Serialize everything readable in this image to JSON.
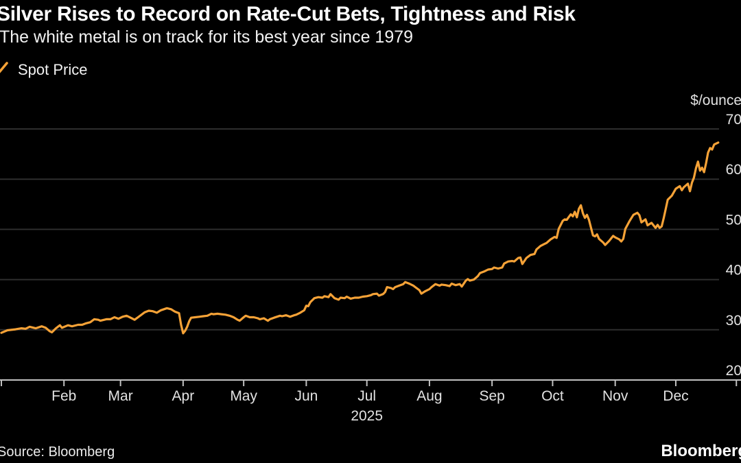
{
  "header": {
    "title": "Silver Rises to Record on Rate-Cut Bets, Tightness and Risk",
    "subtitle": "The white metal is on track for its best year since 1979"
  },
  "legend": {
    "label": "Spot Price"
  },
  "footer": {
    "source": "Source: Bloomberg",
    "brand": "Bloomberg"
  },
  "colors": {
    "background": "#000000",
    "line": "#F5A237",
    "grid": "#2e2e2e",
    "axis": "#c2c2c2",
    "label": "#e2e2e2"
  },
  "chart_data": {
    "type": "line",
    "title": "Silver spot price, 2025",
    "unit_label": "$/ounce",
    "year_label": "2025",
    "year": 2025,
    "ylim": [
      20,
      70
    ],
    "y_ticks": [
      70,
      60,
      50,
      40,
      30,
      20
    ],
    "x_tick_labels": [
      "Feb",
      "Mar",
      "Apr",
      "May",
      "Jun",
      "Jul",
      "Aug",
      "Sep",
      "Oct",
      "Nov",
      "Dec"
    ],
    "grid": true,
    "legend_position": "top-left",
    "series": [
      {
        "name": "Spot Price",
        "color": "#F5A237",
        "points": [
          [
            "01-01",
            29.4
          ],
          [
            "01-04",
            29.9
          ],
          [
            "01-08",
            30.1
          ],
          [
            "01-11",
            30.3
          ],
          [
            "01-13",
            30.2
          ],
          [
            "01-15",
            30.6
          ],
          [
            "01-18",
            30.3
          ],
          [
            "01-21",
            30.7
          ],
          [
            "01-23",
            30.4
          ],
          [
            "01-25",
            29.7
          ],
          [
            "01-26",
            29.5
          ],
          [
            "01-28",
            30.3
          ],
          [
            "01-30",
            30.9
          ],
          [
            "01-31",
            30.4
          ],
          [
            "02-03",
            30.9
          ],
          [
            "02-05",
            30.7
          ],
          [
            "02-08",
            31.0
          ],
          [
            "02-10",
            31.0
          ],
          [
            "02-12",
            31.3
          ],
          [
            "02-14",
            31.5
          ],
          [
            "02-16",
            32.1
          ],
          [
            "02-18",
            32.0
          ],
          [
            "02-19",
            31.8
          ],
          [
            "02-22",
            32.1
          ],
          [
            "02-24",
            32.1
          ],
          [
            "02-26",
            32.5
          ],
          [
            "02-28",
            32.2
          ],
          [
            "03-02",
            32.6
          ],
          [
            "03-04",
            32.8
          ],
          [
            "03-06",
            32.4
          ],
          [
            "03-08",
            32.0
          ],
          [
            "03-11",
            32.9
          ],
          [
            "03-13",
            33.5
          ],
          [
            "03-15",
            33.8
          ],
          [
            "03-17",
            33.7
          ],
          [
            "03-19",
            33.4
          ],
          [
            "03-21",
            33.9
          ],
          [
            "03-24",
            34.3
          ],
          [
            "03-26",
            34.1
          ],
          [
            "03-28",
            33.6
          ],
          [
            "03-30",
            33.3
          ],
          [
            "03-31",
            31.0
          ],
          [
            "04-01",
            29.3
          ],
          [
            "04-02",
            29.8
          ],
          [
            "04-03",
            30.6
          ],
          [
            "04-04",
            31.7
          ],
          [
            "04-05",
            32.4
          ],
          [
            "04-07",
            32.5
          ],
          [
            "04-09",
            32.6
          ],
          [
            "04-11",
            32.7
          ],
          [
            "04-13",
            32.8
          ],
          [
            "04-15",
            33.2
          ],
          [
            "04-16",
            33.1
          ],
          [
            "04-18",
            33.2
          ],
          [
            "04-20",
            33.1
          ],
          [
            "04-22",
            33.0
          ],
          [
            "04-24",
            32.8
          ],
          [
            "04-26",
            32.5
          ],
          [
            "04-28",
            32.0
          ],
          [
            "04-29",
            31.8
          ],
          [
            "05-01",
            32.5
          ],
          [
            "05-02",
            32.8
          ],
          [
            "05-04",
            32.5
          ],
          [
            "05-06",
            32.5
          ],
          [
            "05-08",
            32.3
          ],
          [
            "05-09",
            32.1
          ],
          [
            "05-11",
            32.3
          ],
          [
            "05-13",
            31.8
          ],
          [
            "05-14",
            32.1
          ],
          [
            "05-16",
            32.4
          ],
          [
            "05-19",
            32.8
          ],
          [
            "05-20",
            32.7
          ],
          [
            "05-22",
            32.9
          ],
          [
            "05-24",
            32.6
          ],
          [
            "05-26",
            32.9
          ],
          [
            "05-27",
            33.0
          ],
          [
            "05-29",
            33.4
          ],
          [
            "05-31",
            33.9
          ],
          [
            "06-01",
            34.8
          ],
          [
            "06-02",
            34.7
          ],
          [
            "06-03",
            35.5
          ],
          [
            "06-05",
            36.3
          ],
          [
            "06-07",
            36.5
          ],
          [
            "06-09",
            36.4
          ],
          [
            "06-10",
            36.7
          ],
          [
            "06-12",
            36.5
          ],
          [
            "06-13",
            37.1
          ],
          [
            "06-15",
            36.3
          ],
          [
            "06-17",
            36.0
          ],
          [
            "06-18",
            36.4
          ],
          [
            "06-20",
            36.3
          ],
          [
            "06-21",
            36.6
          ],
          [
            "06-23",
            36.2
          ],
          [
            "06-25",
            36.4
          ],
          [
            "06-27",
            36.4
          ],
          [
            "06-29",
            36.6
          ],
          [
            "07-01",
            36.7
          ],
          [
            "07-03",
            36.9
          ],
          [
            "07-04",
            37.1
          ],
          [
            "07-06",
            37.2
          ],
          [
            "07-07",
            36.8
          ],
          [
            "07-09",
            37.1
          ],
          [
            "07-10",
            37.5
          ],
          [
            "07-11",
            38.5
          ],
          [
            "07-13",
            38.3
          ],
          [
            "07-14",
            38.1
          ],
          [
            "07-15",
            38.5
          ],
          [
            "07-17",
            38.8
          ],
          [
            "07-19",
            39.1
          ],
          [
            "07-20",
            39.5
          ],
          [
            "07-22",
            39.2
          ],
          [
            "07-24",
            38.8
          ],
          [
            "07-25",
            38.5
          ],
          [
            "07-27",
            37.9
          ],
          [
            "07-28",
            37.2
          ],
          [
            "07-30",
            37.7
          ],
          [
            "08-01",
            38.1
          ],
          [
            "08-02",
            38.5
          ],
          [
            "08-04",
            39.1
          ],
          [
            "08-06",
            38.8
          ],
          [
            "08-07",
            39.0
          ],
          [
            "08-09",
            38.9
          ],
          [
            "08-11",
            38.7
          ],
          [
            "08-12",
            39.2
          ],
          [
            "08-14",
            38.9
          ],
          [
            "08-16",
            39.1
          ],
          [
            "08-17",
            38.6
          ],
          [
            "08-19",
            39.8
          ],
          [
            "08-20",
            40.1
          ],
          [
            "08-21",
            39.8
          ],
          [
            "08-23",
            40.0
          ],
          [
            "08-25",
            40.7
          ],
          [
            "08-26",
            41.3
          ],
          [
            "08-28",
            41.6
          ],
          [
            "08-30",
            42.0
          ],
          [
            "09-01",
            42.1
          ],
          [
            "09-02",
            42.4
          ],
          [
            "09-04",
            42.2
          ],
          [
            "09-06",
            42.4
          ],
          [
            "09-07",
            43.2
          ],
          [
            "09-09",
            43.6
          ],
          [
            "09-11",
            43.7
          ],
          [
            "09-12",
            43.6
          ],
          [
            "09-14",
            44.3
          ],
          [
            "09-15",
            44.4
          ],
          [
            "09-16",
            43.1
          ],
          [
            "09-18",
            44.3
          ],
          [
            "09-20",
            44.9
          ],
          [
            "09-22",
            45.1
          ],
          [
            "09-23",
            46.0
          ],
          [
            "09-25",
            46.7
          ],
          [
            "09-27",
            47.1
          ],
          [
            "09-28",
            47.3
          ],
          [
            "09-30",
            48.0
          ],
          [
            "10-02",
            48.5
          ],
          [
            "10-03",
            48.3
          ],
          [
            "10-04",
            50.1
          ],
          [
            "10-06",
            51.7
          ],
          [
            "10-07",
            52.0
          ],
          [
            "10-08",
            51.9
          ],
          [
            "10-10",
            53.0
          ],
          [
            "10-11",
            52.6
          ],
          [
            "10-12",
            53.5
          ],
          [
            "10-13",
            52.4
          ],
          [
            "10-14",
            54.1
          ],
          [
            "10-15",
            54.8
          ],
          [
            "10-16",
            53.2
          ],
          [
            "10-17",
            52.3
          ],
          [
            "10-18",
            52.9
          ],
          [
            "10-19",
            51.9
          ],
          [
            "10-20",
            50.3
          ],
          [
            "10-21",
            48.8
          ],
          [
            "10-22",
            48.6
          ],
          [
            "10-23",
            49.0
          ],
          [
            "10-24",
            48.1
          ],
          [
            "10-26",
            47.4
          ],
          [
            "10-27",
            46.9
          ],
          [
            "10-29",
            47.7
          ],
          [
            "10-31",
            48.7
          ],
          [
            "11-01",
            48.4
          ],
          [
            "11-03",
            48.0
          ],
          [
            "11-04",
            47.6
          ],
          [
            "11-05",
            48.1
          ],
          [
            "11-06",
            50.1
          ],
          [
            "11-08",
            51.6
          ],
          [
            "11-10",
            52.9
          ],
          [
            "11-12",
            53.3
          ],
          [
            "11-13",
            52.8
          ],
          [
            "11-14",
            51.4
          ],
          [
            "11-16",
            52.0
          ],
          [
            "11-17",
            50.8
          ],
          [
            "11-19",
            51.3
          ],
          [
            "11-21",
            50.3
          ],
          [
            "11-22",
            50.9
          ],
          [
            "11-23",
            50.3
          ],
          [
            "11-24",
            50.6
          ],
          [
            "11-25",
            52.2
          ],
          [
            "11-27",
            55.9
          ],
          [
            "11-29",
            56.7
          ],
          [
            "12-01",
            58.1
          ],
          [
            "12-03",
            58.6
          ],
          [
            "12-04",
            57.8
          ],
          [
            "12-05",
            58.4
          ],
          [
            "12-07",
            59.1
          ],
          [
            "12-08",
            57.6
          ],
          [
            "12-09",
            59.3
          ],
          [
            "12-10",
            60.3
          ],
          [
            "12-11",
            62.2
          ],
          [
            "12-12",
            63.5
          ],
          [
            "12-13",
            61.7
          ],
          [
            "12-14",
            62.3
          ],
          [
            "12-15",
            61.4
          ],
          [
            "12-16",
            63.2
          ],
          [
            "12-17",
            65.3
          ],
          [
            "12-18",
            66.2
          ],
          [
            "12-19",
            65.9
          ],
          [
            "12-20",
            66.9
          ],
          [
            "12-22",
            67.3
          ]
        ]
      }
    ]
  }
}
